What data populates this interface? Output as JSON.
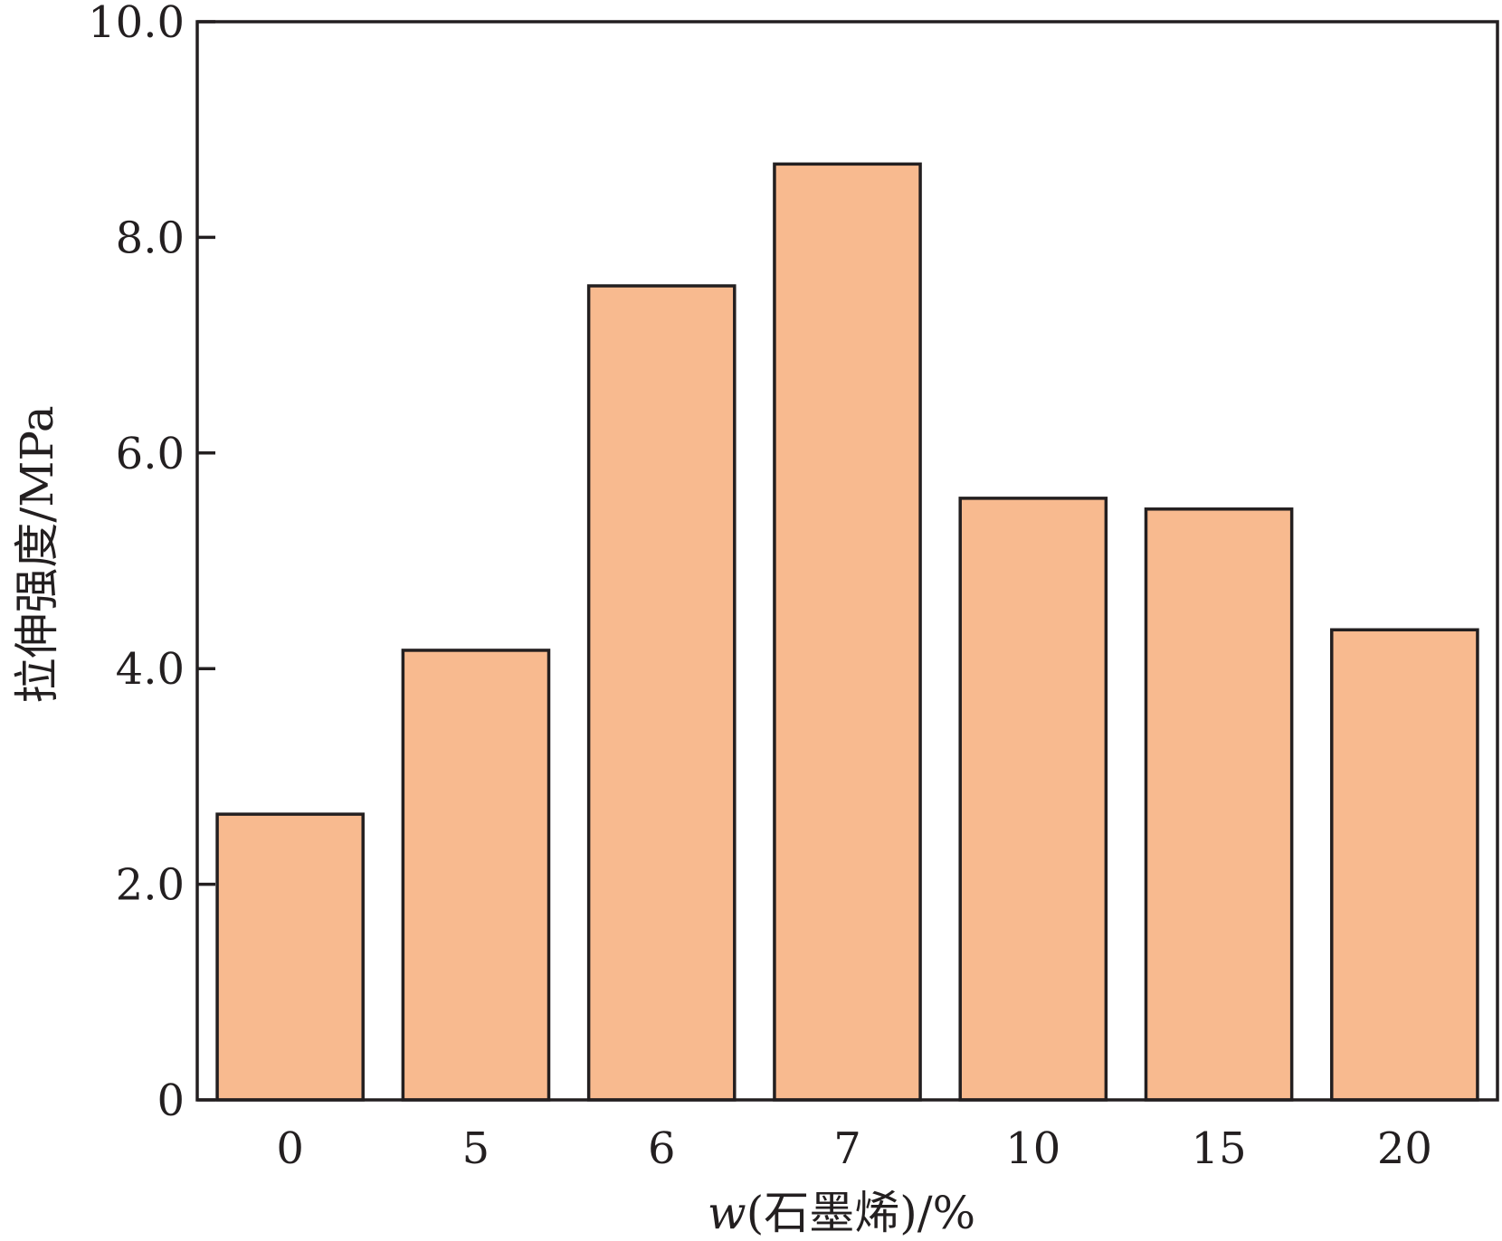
{
  "chart_data": {
    "type": "bar",
    "categories": [
      "0",
      "5",
      "6",
      "7",
      "10",
      "15",
      "20"
    ],
    "values": [
      2.65,
      4.17,
      7.55,
      8.68,
      5.58,
      5.48,
      4.36
    ],
    "xlabel": "w(石墨烯)/%",
    "xlabel_var": "w",
    "xlabel_rest": "(石墨烯)/%",
    "ylabel": "拉伸强度/MPa",
    "ylim": [
      0,
      10
    ],
    "yticks": [
      0,
      2,
      4,
      6,
      8,
      10
    ],
    "ytick_labels": [
      "0",
      "2.0",
      "4.0",
      "6.0",
      "8.0",
      "10.0"
    ],
    "grid": false,
    "colors": {
      "bar_fill": "#f8ba8f",
      "bar_edge": "#231f20",
      "axis": "#231f20"
    }
  }
}
